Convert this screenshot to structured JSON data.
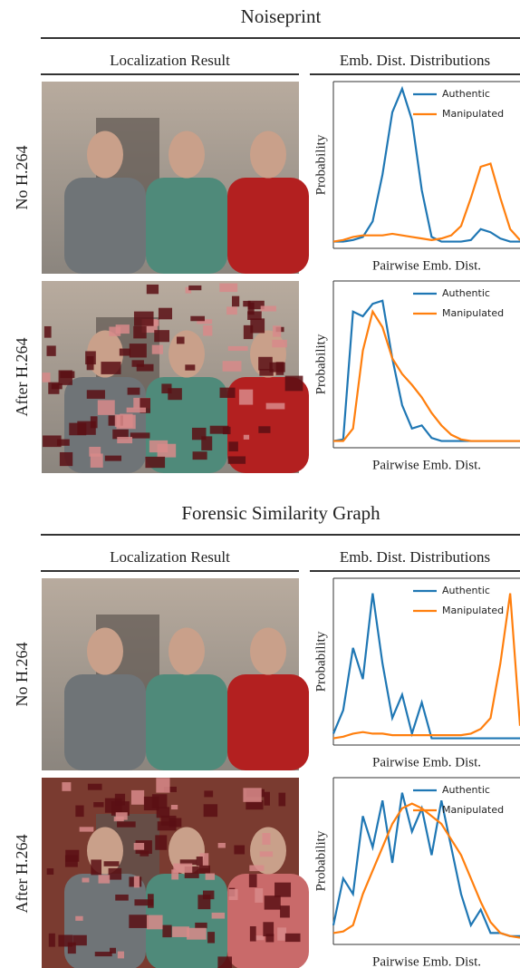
{
  "sections": [
    {
      "title": "Noiseprint",
      "column_headers": [
        "Localization Result",
        "Emb. Dist. Distributions"
      ],
      "rows": [
        {
          "label": "No H.264",
          "chart": {
            "type": "line",
            "xlabel": "Pairwise Emb. Dist.",
            "ylabel": "Probability",
            "ylim": [
              0,
              1
            ],
            "series": [
              {
                "name": "Authentic",
                "color": "#1f77b4",
                "values": [
                  0.02,
                  0.02,
                  0.03,
                  0.05,
                  0.15,
                  0.45,
                  0.85,
                  1.0,
                  0.8,
                  0.35,
                  0.05,
                  0.02,
                  0.02,
                  0.02,
                  0.03,
                  0.1,
                  0.08,
                  0.04,
                  0.02,
                  0.02
                ]
              },
              {
                "name": "Manipulated",
                "color": "#ff7f0e",
                "values": [
                  0.02,
                  0.03,
                  0.05,
                  0.06,
                  0.06,
                  0.06,
                  0.07,
                  0.06,
                  0.05,
                  0.04,
                  0.03,
                  0.04,
                  0.06,
                  0.12,
                  0.3,
                  0.5,
                  0.52,
                  0.3,
                  0.1,
                  0.03
                ]
              }
            ]
          }
        },
        {
          "label": "After H.264",
          "chart": {
            "type": "line",
            "xlabel": "Pairwise Emb. Dist.",
            "ylabel": "Probability",
            "ylim": [
              0,
              1
            ],
            "series": [
              {
                "name": "Authentic",
                "color": "#1f77b4",
                "values": [
                  0.02,
                  0.03,
                  0.85,
                  0.82,
                  0.9,
                  0.92,
                  0.55,
                  0.25,
                  0.1,
                  0.12,
                  0.04,
                  0.02,
                  0.02,
                  0.02,
                  0.02,
                  0.02,
                  0.02,
                  0.02,
                  0.02,
                  0.02
                ]
              },
              {
                "name": "Manipulated",
                "color": "#ff7f0e",
                "values": [
                  0.02,
                  0.02,
                  0.1,
                  0.6,
                  0.85,
                  0.75,
                  0.55,
                  0.45,
                  0.38,
                  0.3,
                  0.2,
                  0.12,
                  0.06,
                  0.03,
                  0.02,
                  0.02,
                  0.02,
                  0.02,
                  0.02,
                  0.02
                ]
              }
            ]
          }
        }
      ]
    },
    {
      "title": "Forensic Similarity Graph",
      "column_headers": [
        "Localization Result",
        "Emb. Dist. Distributions"
      ],
      "rows": [
        {
          "label": "No H.264",
          "chart": {
            "type": "line",
            "xlabel": "Pairwise Emb. Dist.",
            "ylabel": "Probability",
            "ylim": [
              0,
              1
            ],
            "series": [
              {
                "name": "Authentic",
                "color": "#1f77b4",
                "values": [
                  0.05,
                  0.2,
                  0.6,
                  0.4,
                  0.95,
                  0.5,
                  0.15,
                  0.3,
                  0.05,
                  0.25,
                  0.02,
                  0.02,
                  0.02,
                  0.02,
                  0.02,
                  0.02,
                  0.02,
                  0.02,
                  0.02,
                  0.02
                ]
              },
              {
                "name": "Manipulated",
                "color": "#ff7f0e",
                "values": [
                  0.02,
                  0.03,
                  0.05,
                  0.06,
                  0.05,
                  0.05,
                  0.04,
                  0.04,
                  0.04,
                  0.04,
                  0.04,
                  0.04,
                  0.04,
                  0.04,
                  0.05,
                  0.08,
                  0.15,
                  0.5,
                  0.95,
                  0.1
                ]
              }
            ]
          }
        },
        {
          "label": "After H.264",
          "chart": {
            "type": "line",
            "xlabel": "Pairwise Emb. Dist.",
            "ylabel": "Probability",
            "ylim": [
              0,
              1
            ],
            "series": [
              {
                "name": "Authentic",
                "color": "#1f77b4",
                "values": [
                  0.1,
                  0.4,
                  0.3,
                  0.8,
                  0.6,
                  0.9,
                  0.5,
                  0.95,
                  0.7,
                  0.85,
                  0.55,
                  0.9,
                  0.6,
                  0.3,
                  0.1,
                  0.2,
                  0.05,
                  0.05,
                  0.03,
                  0.03
                ]
              },
              {
                "name": "Manipulated",
                "color": "#ff7f0e",
                "values": [
                  0.05,
                  0.06,
                  0.1,
                  0.3,
                  0.45,
                  0.6,
                  0.75,
                  0.85,
                  0.88,
                  0.85,
                  0.8,
                  0.75,
                  0.65,
                  0.55,
                  0.4,
                  0.25,
                  0.12,
                  0.05,
                  0.03,
                  0.02
                ]
              }
            ]
          }
        }
      ]
    }
  ]
}
